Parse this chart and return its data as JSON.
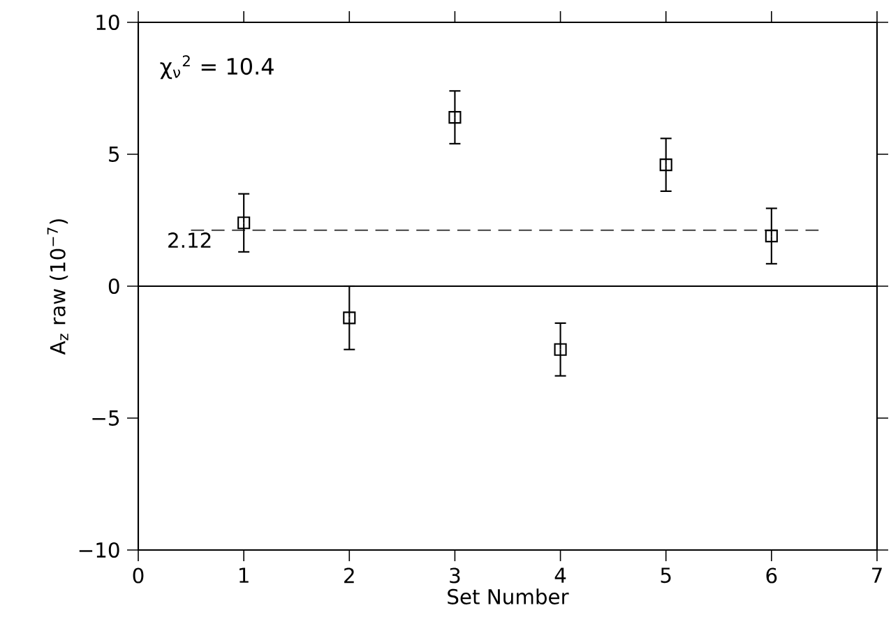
{
  "chart_data": {
    "type": "scatter",
    "xlabel": "Set Number",
    "ylabel": "A$_{z}$ raw (10$^{−7}$)",
    "x": [
      1,
      2,
      3,
      4,
      5,
      6
    ],
    "series": [
      {
        "color": "#000000",
        "values": [
          2.4,
          -1.2,
          6.4,
          -2.4,
          4.6,
          1.9
        ],
        "errors": [
          1.1,
          1.2,
          1.0,
          1.0,
          1.0,
          1.05
        ]
      }
    ],
    "marker": "square",
    "xlim": [
      0,
      7
    ],
    "xticks": [
      0,
      1,
      2,
      3,
      4,
      5,
      6,
      7
    ],
    "ylim": [
      -10,
      10
    ],
    "yticks": [
      {
        "value": -10,
        "label": "−10"
      },
      {
        "value": -5,
        "label": "−5"
      },
      0,
      5,
      10
    ],
    "ref_lines": [
      {
        "axis": "y",
        "value": 2.12,
        "label": "2.12",
        "color": "#555555",
        "line_style": "dashed"
      },
      {
        "axis": "y",
        "value": 0,
        "color": "#000000",
        "line_style": "solid"
      }
    ],
    "annotations": [
      "χ$_{ν}$$^{2}$ = 10.4"
    ]
  }
}
